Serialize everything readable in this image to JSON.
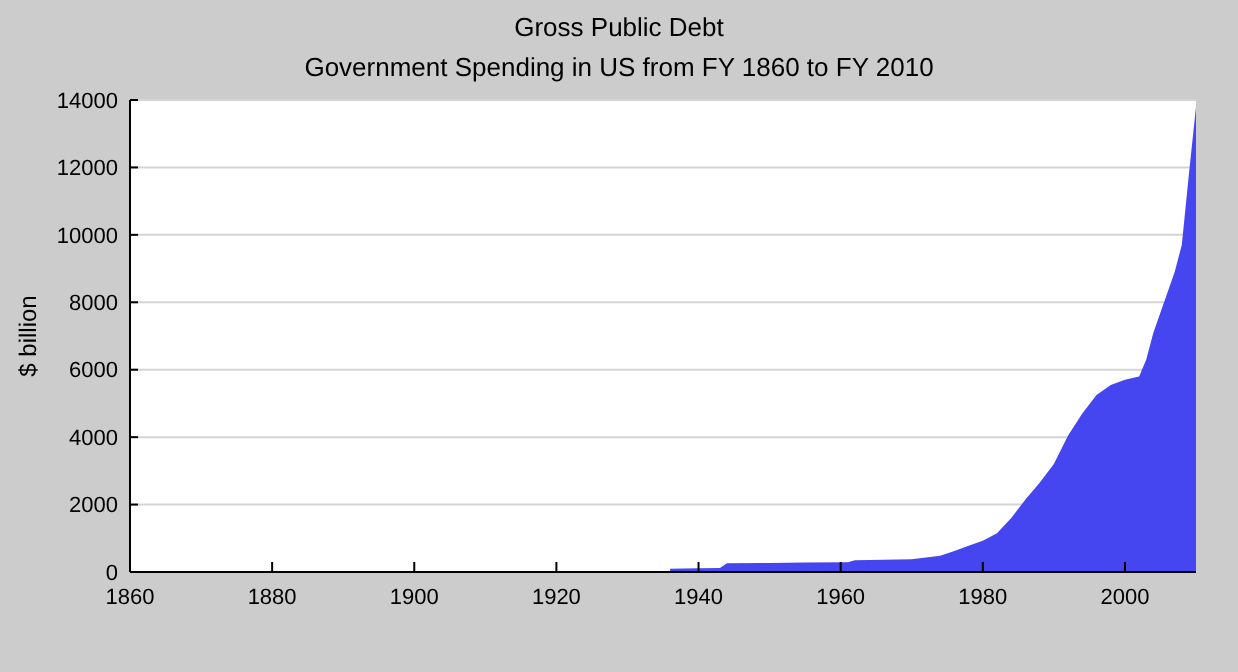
{
  "chart_data": {
    "type": "area",
    "title": "Gross Public Debt",
    "subtitle": "Government Spending in US from FY 1860 to FY 2010",
    "ylabel": "$ billion",
    "x": [
      1936,
      1940,
      1943,
      1944,
      1950,
      1955,
      1961,
      1962,
      1966,
      1970,
      1972,
      1974,
      1976,
      1978,
      1980,
      1982,
      1984,
      1986,
      1988,
      1990,
      1992,
      1994,
      1996,
      1998,
      2000,
      2002,
      2003,
      2004,
      2006,
      2007,
      2008,
      2009,
      2010
    ],
    "series": [
      {
        "color": "#4646f0",
        "values": [
          100,
          110,
          120,
          260,
          270,
          280,
          290,
          350,
          360,
          380,
          430,
          480,
          620,
          780,
          930,
          1150,
          1600,
          2150,
          2650,
          3200,
          4050,
          4700,
          5250,
          5550,
          5700,
          5800,
          6300,
          7100,
          8300,
          8900,
          9700,
          11800,
          13800
        ]
      }
    ],
    "xlim": [
      1860,
      2010
    ],
    "xticks": [
      1860,
      1880,
      1900,
      1920,
      1940,
      1960,
      1980,
      2000
    ],
    "ylim": [
      0,
      14000
    ],
    "yticks": [
      0,
      2000,
      4000,
      6000,
      8000,
      10000,
      12000,
      14000
    ],
    "grid": "y"
  }
}
